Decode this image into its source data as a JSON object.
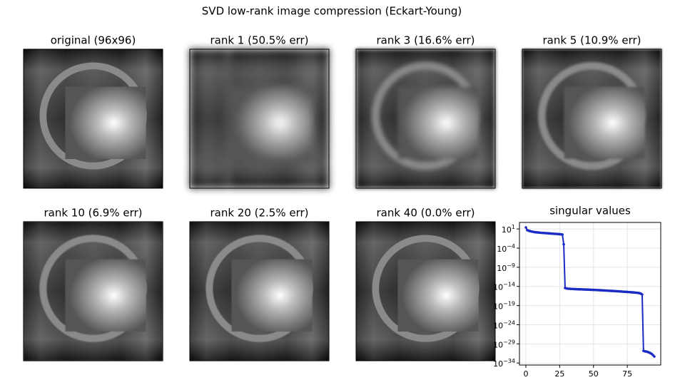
{
  "title": "SVD low-rank image compression (Eckart-Young)",
  "panels": [
    {
      "title": "original (96x96)"
    },
    {
      "title": "rank 1  (50.5% err)"
    },
    {
      "title": "rank 3  (16.6% err)"
    },
    {
      "title": "rank 5  (10.9% err)"
    },
    {
      "title": "rank 10  (6.9% err)"
    },
    {
      "title": "rank 20  (2.5% err)"
    },
    {
      "title": "rank 40  (0.0% err)"
    }
  ],
  "chart_data": {
    "type": "line",
    "title": "singular values",
    "log_y": true,
    "grid": true,
    "xlim": [
      -4.75,
      99.75
    ],
    "xticks": [
      0,
      25,
      50,
      75
    ],
    "ylim": [
      3e-35,
      500
    ],
    "yticks": [
      {
        "value": 10,
        "label": "10",
        "exponent": "1"
      },
      {
        "value": 0.0001,
        "label": "10",
        "exponent": "−4"
      },
      {
        "value": 1e-09,
        "label": "10",
        "exponent": "−9"
      },
      {
        "value": 1e-14,
        "label": "10",
        "exponent": "−14"
      },
      {
        "value": 1e-19,
        "label": "10",
        "exponent": "−19"
      },
      {
        "value": 1e-24,
        "label": "10",
        "exponent": "−24"
      },
      {
        "value": 1e-29,
        "label": "10",
        "exponent": "−29"
      },
      {
        "value": 1e-34,
        "label": "10",
        "exponent": "−34"
      }
    ],
    "x": [
      0,
      1,
      2,
      3,
      4,
      5,
      6,
      7,
      8,
      9,
      10,
      11,
      12,
      13,
      14,
      15,
      16,
      17,
      18,
      19,
      20,
      21,
      22,
      23,
      24,
      25,
      26,
      27,
      28,
      29,
      30,
      31,
      32,
      33,
      34,
      35,
      36,
      37,
      38,
      39,
      40,
      41,
      42,
      43,
      44,
      45,
      46,
      47,
      48,
      49,
      50,
      51,
      52,
      53,
      54,
      55,
      56,
      57,
      58,
      59,
      60,
      61,
      62,
      63,
      64,
      65,
      66,
      67,
      68,
      69,
      70,
      71,
      72,
      73,
      74,
      75,
      76,
      77,
      78,
      79,
      80,
      81,
      82,
      83,
      84,
      85,
      86,
      87,
      88,
      89,
      90,
      91,
      92,
      93,
      94,
      95
    ],
    "series": [
      {
        "color": "#1a2bc4",
        "values": [
          25,
          5,
          3.5,
          2.8,
          2.2,
          1.9,
          1.6,
          1.4,
          1.3,
          1.2,
          1.1,
          1.0,
          0.95,
          0.9,
          0.85,
          0.8,
          0.75,
          0.7,
          0.66,
          0.62,
          0.58,
          0.55,
          0.52,
          0.49,
          0.46,
          0.43,
          0.4,
          0.35,
          0.001,
          4e-15,
          3e-15,
          2.6e-15,
          2.4e-15,
          2.3e-15,
          2.2e-15,
          2.1e-15,
          2e-15,
          1.9e-15,
          1.85e-15,
          1.8e-15,
          1.75e-15,
          1.7e-15,
          1.65e-15,
          1.6e-15,
          1.55e-15,
          1.5e-15,
          1.45e-15,
          1.4e-15,
          1.35e-15,
          1.3e-15,
          1.25e-15,
          1.2e-15,
          1.15e-15,
          1.1e-15,
          1.05e-15,
          1e-15,
          9.6e-16,
          9.2e-16,
          8.8e-16,
          8.4e-16,
          8e-16,
          7.6e-16,
          7.2e-16,
          6.9e-16,
          6.6e-16,
          6.3e-16,
          6e-16,
          5.7e-16,
          5.4e-16,
          5.1e-16,
          4.8e-16,
          4.5e-16,
          4.2e-16,
          4e-16,
          3.8e-16,
          3.6e-16,
          3.4e-16,
          3.2e-16,
          3e-16,
          2.8e-16,
          2.6e-16,
          2.4e-16,
          2.2e-16,
          2e-16,
          1.7e-16,
          1.3e-16,
          8e-17,
          1.5e-31,
          1.2e-31,
          1e-31,
          8e-32,
          6e-32,
          4e-32,
          2.5e-32,
          1.2e-32,
          5e-33
        ]
      }
    ]
  }
}
